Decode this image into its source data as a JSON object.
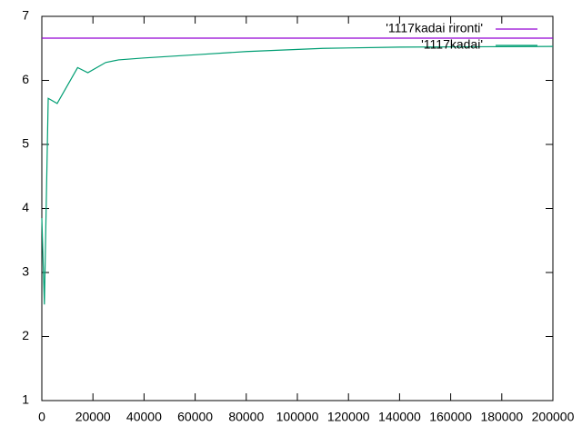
{
  "chart_data": {
    "type": "line",
    "series": [
      {
        "name": "'1117kadai rironti'",
        "color": "#9400d3",
        "x": [
          0,
          200000
        ],
        "values": [
          6.66,
          6.66
        ]
      },
      {
        "name": "'1117kadai'",
        "color": "#009e73",
        "x": [
          0,
          1000,
          2500,
          6000,
          14000,
          18000,
          25000,
          30000,
          40000,
          60000,
          80000,
          110000,
          140000,
          200000
        ],
        "values": [
          3.85,
          2.5,
          5.72,
          5.64,
          6.2,
          6.12,
          6.28,
          6.32,
          6.35,
          6.4,
          6.45,
          6.5,
          6.52,
          6.53
        ]
      }
    ],
    "xlim": [
      0,
      200000
    ],
    "xticks": [
      0,
      20000,
      40000,
      60000,
      80000,
      100000,
      120000,
      140000,
      160000,
      180000,
      200000
    ],
    "ylim": [
      1,
      7
    ],
    "yticks": [
      1,
      2,
      3,
      4,
      5,
      6,
      7
    ],
    "legend": "top-right"
  }
}
